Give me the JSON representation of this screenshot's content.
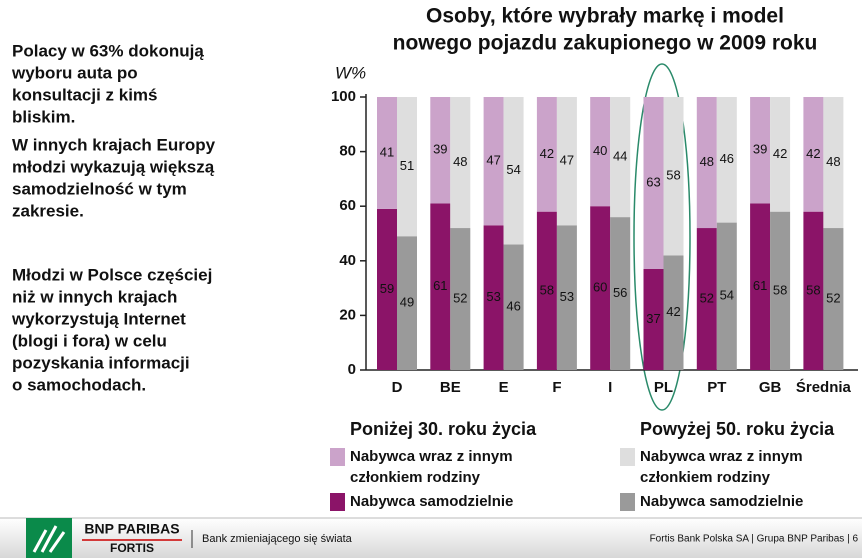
{
  "notes": [
    [
      "Polacy w 63% dokonują",
      "wyboru auta po",
      "konsultacji z kimś",
      "bliskim."
    ],
    [
      "W innych krajach Europy",
      "młodzi wykazują większą",
      "samodzielność w tym",
      "zakresie."
    ],
    [
      "Młodzi w Polsce częściej",
      "niż w innych krajach",
      "wykorzystują Internet",
      "(blogi i fora) w celu",
      "pozyskania informacji",
      "o samochodach."
    ]
  ],
  "chart_data": {
    "type": "grouped_stacked_bar",
    "title_lines": [
      "Osoby, które wybrały markę i model",
      "nowego pojazdu zakupionego w 2009 roku"
    ],
    "y_label": "W%",
    "categories": [
      "D",
      "BE",
      "E",
      "F",
      "I",
      "PL",
      "PT",
      "GB",
      "Średnia"
    ],
    "ylim": [
      0,
      100
    ],
    "yticks": [
      0,
      20,
      40,
      60,
      80,
      100
    ],
    "groups": [
      {
        "name": "Poniżej 30. roku życia",
        "series": [
          {
            "name": "Nabywca samodzielnie",
            "color": "#8b1468",
            "values": [
              59,
              61,
              53,
              58,
              60,
              37,
              52,
              61,
              58
            ]
          },
          {
            "name": "Nabywca wraz z innym członkiem rodziny",
            "color": "#cba3ca",
            "values": [
              41,
              39,
              47,
              42,
              40,
              63,
              48,
              39,
              42
            ]
          }
        ]
      },
      {
        "name": "Powyżej 50. roku życia",
        "series": [
          {
            "name": "Nabywca samodzielnie",
            "color": "#9a9a9a",
            "values": [
              49,
              52,
              46,
              53,
              56,
              42,
              54,
              58,
              52
            ]
          },
          {
            "name": "Nabywca wraz z innym członkiem rodziny",
            "color": "#dedede",
            "values": [
              51,
              48,
              54,
              47,
              44,
              58,
              46,
              42,
              48
            ]
          }
        ]
      }
    ]
  },
  "footer": {
    "brand": "BNP PARIBAS",
    "sub_brand": "FORTIS",
    "slogan": "Bank zmieniającego się świata",
    "info": "Fortis Bank Polska SA  |  Grupa BNP Paribas  |  6"
  }
}
